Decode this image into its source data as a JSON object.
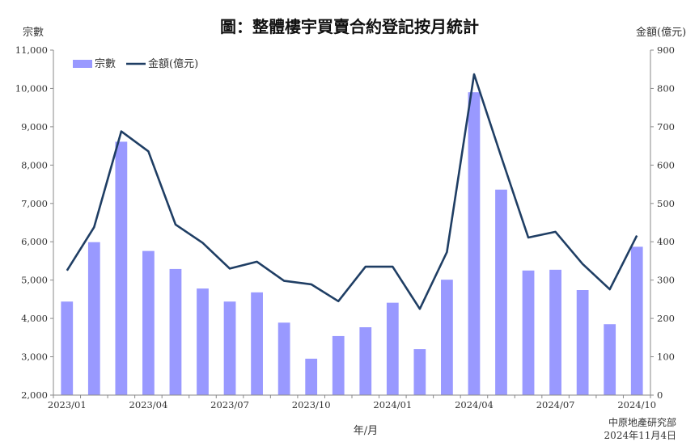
{
  "chart_data": {
    "type": "bar+line",
    "title": "圖：整體樓宇買賣合約登記按月統計",
    "xlabel": "年/月",
    "ylabel_left": "宗數",
    "ylabel_right": "金額(億元)",
    "ylim_left": [
      2000,
      11000
    ],
    "ylim_right": [
      0,
      900
    ],
    "yticks_left": [
      "2,000",
      "3,000",
      "4,000",
      "5,000",
      "6,000",
      "7,000",
      "8,000",
      "9,000",
      "10,000",
      "11,000"
    ],
    "yticks_right": [
      "0",
      "100",
      "200",
      "300",
      "400",
      "500",
      "600",
      "700",
      "800",
      "900"
    ],
    "categories": [
      "2023/01",
      "2023/02",
      "2023/03",
      "2023/04",
      "2023/05",
      "2023/06",
      "2023/07",
      "2023/08",
      "2023/09",
      "2023/10",
      "2023/11",
      "2023/12",
      "2024/01",
      "2024/02",
      "2024/03",
      "2024/04",
      "2024/05",
      "2024/06",
      "2024/07",
      "2024/08",
      "2024/09",
      "2024/10"
    ],
    "x_tick_labels": [
      "2023/01",
      "2023/04",
      "2023/07",
      "2023/10",
      "2024/01",
      "2024/04",
      "2024/07",
      "2024/10"
    ],
    "series": [
      {
        "name": "宗數",
        "type": "bar",
        "axis": "left",
        "color": "#9999ff",
        "values": [
          4440,
          5990,
          8610,
          5760,
          5290,
          4780,
          4440,
          4680,
          3890,
          2950,
          3540,
          3770,
          4410,
          3200,
          5010,
          9900,
          7360,
          5250,
          5270,
          4740,
          3850,
          5870
        ]
      },
      {
        "name": "金額(億元)",
        "type": "line",
        "axis": "right",
        "color": "#1f3e64",
        "values": [
          325,
          438,
          688,
          636,
          445,
          397,
          330,
          348,
          298,
          289,
          245,
          335,
          335,
          225,
          373,
          837,
          622,
          411,
          426,
          342,
          276,
          416
        ]
      }
    ],
    "legend": "top-left",
    "grid": false
  },
  "source": {
    "line1": "中原地產研究部",
    "line2": "2024年11月4日"
  }
}
